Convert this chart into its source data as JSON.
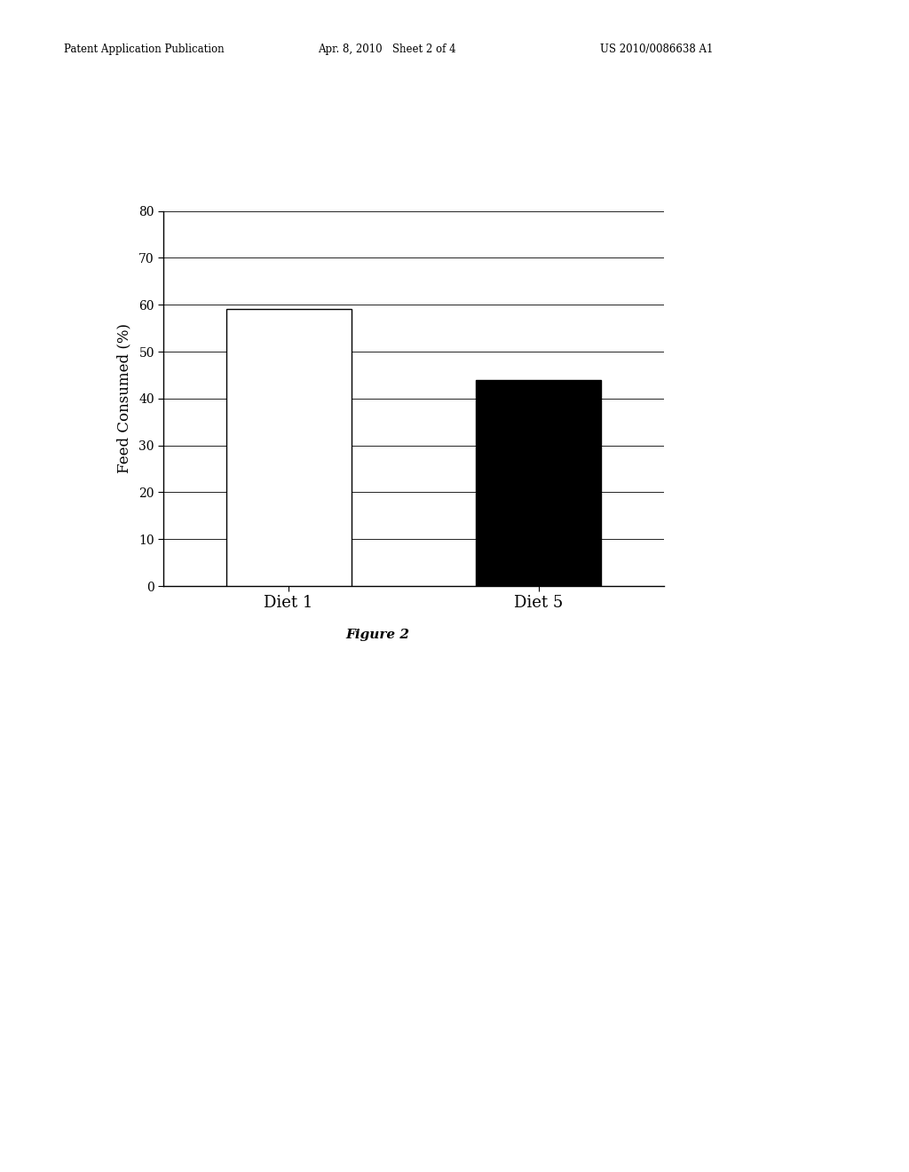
{
  "categories": [
    "Diet 1",
    "Diet 5"
  ],
  "values": [
    59,
    44
  ],
  "bar_colors": [
    "#ffffff",
    "#000000"
  ],
  "bar_edge_colors": [
    "#000000",
    "#000000"
  ],
  "ylabel": "Feed Consumed (%)",
  "ylim": [
    0,
    80
  ],
  "yticks": [
    0,
    10,
    20,
    30,
    40,
    50,
    60,
    70,
    80
  ],
  "figure_caption": "Figure 2",
  "header_left": "Patent Application Publication",
  "header_center": "Apr. 8, 2010   Sheet 2 of 4",
  "header_right": "US 2010/0086638 A1",
  "bg_color": "#ffffff",
  "bar_width": 0.25
}
